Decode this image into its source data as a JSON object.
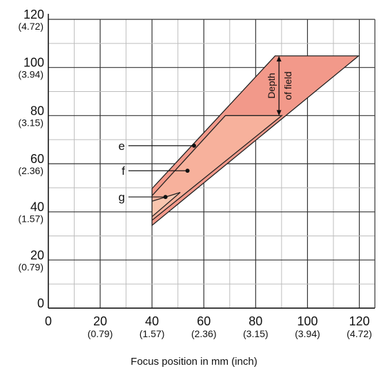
{
  "chart_data": {
    "type": "area",
    "xlabel": "Focus position in mm (inch)",
    "ylabel": "",
    "xlim": [
      0,
      126
    ],
    "ylim": [
      0,
      120
    ],
    "x_ticks": [
      {
        "value": 0,
        "label": "0",
        "sub": ""
      },
      {
        "value": 20,
        "label": "20",
        "sub": "(0.79)"
      },
      {
        "value": 40,
        "label": "40",
        "sub": "(1.57)"
      },
      {
        "value": 60,
        "label": "60",
        "sub": "(2.36)"
      },
      {
        "value": 80,
        "label": "80",
        "sub": "(3.15)"
      },
      {
        "value": 100,
        "label": "100",
        "sub": "(3.94)"
      },
      {
        "value": 120,
        "label": "120",
        "sub": "(4.72)"
      }
    ],
    "y_ticks": [
      {
        "value": 0,
        "label": "0",
        "sub": ""
      },
      {
        "value": 20,
        "label": "20",
        "sub": "(0.79)"
      },
      {
        "value": 40,
        "label": "40",
        "sub": "(1.57)"
      },
      {
        "value": 60,
        "label": "60",
        "sub": "(2.36)"
      },
      {
        "value": 80,
        "label": "80",
        "sub": "(3.15)"
      },
      {
        "value": 100,
        "label": "100",
        "sub": "(3.94)"
      },
      {
        "value": 120,
        "label": "120",
        "sub": "(4.72)"
      }
    ],
    "grid_step": 10,
    "regions": [
      {
        "name": "e",
        "color": "#f2998a",
        "points": [
          [
            40,
            49.7
          ],
          [
            87.5,
            104.8
          ],
          [
            119.7,
            104.8
          ],
          [
            40,
            34.4
          ]
        ]
      },
      {
        "name": "f",
        "color": "#f7b19c",
        "points": [
          [
            40,
            46.7
          ],
          [
            68.3,
            80.0
          ],
          [
            90.1,
            80.0
          ],
          [
            40,
            36.5
          ]
        ]
      },
      {
        "name": "g",
        "color": "#f9c5ae",
        "points": [
          [
            40,
            44.4
          ],
          [
            50.9,
            48.1
          ],
          [
            40,
            38.0
          ]
        ]
      }
    ],
    "labels": [
      {
        "text": "e",
        "x": 56.2,
        "y": 67.5
      },
      {
        "text": "f",
        "x": 53.7,
        "y": 57.1
      },
      {
        "text": "g",
        "x": 45.2,
        "y": 46.2
      }
    ],
    "annotation": {
      "line1": "Depth",
      "line2": "of field",
      "x": 89.0,
      "y_top": 104.8,
      "y_bottom": 80.0
    }
  }
}
